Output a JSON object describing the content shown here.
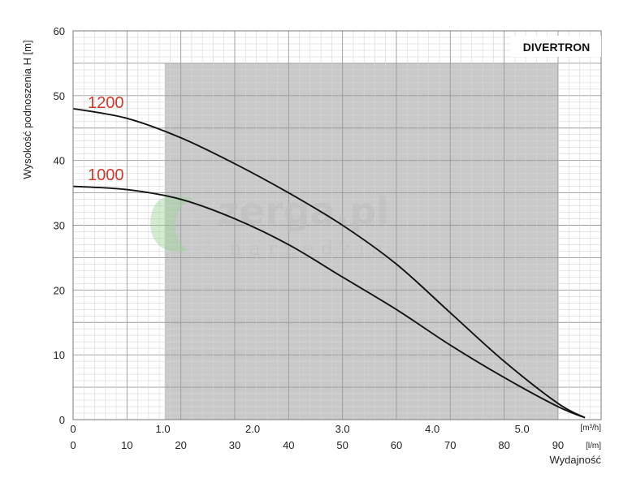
{
  "chart_data": {
    "type": "line",
    "title": "DIVERTRON",
    "ylabel": "Wysokość podnoszenia H [m]",
    "xlabel": "Wydajność",
    "ylim": [
      0,
      60
    ],
    "y_ticks": [
      "0",
      "10",
      "20",
      "30",
      "40",
      "50",
      "60"
    ],
    "x_axis_m3h": {
      "unit": "[m³/h]",
      "ticks": [
        "0",
        "1.0",
        "2.0",
        "3.0",
        "4.0",
        "5.0"
      ],
      "xlim": [
        0,
        5.88
      ]
    },
    "x_axis_lmin": {
      "unit": "[l/m]",
      "ticks": [
        "0",
        "10",
        "20",
        "30",
        "40",
        "50",
        "60",
        "70",
        "80",
        "90"
      ],
      "xlim": [
        0,
        98
      ]
    },
    "operating_range_lmin": [
      17,
      90
    ],
    "grid": true,
    "series": [
      {
        "name": "1200",
        "color": "#d03a2c",
        "x": [
          0,
          10,
          20,
          30,
          40,
          50,
          60,
          70,
          80,
          90,
          95
        ],
        "y": [
          48,
          46.5,
          43.5,
          39.5,
          35,
          30,
          24,
          16.5,
          9,
          2.5,
          0.3
        ]
      },
      {
        "name": "1000",
        "color": "#d03a2c",
        "x": [
          0,
          10,
          20,
          30,
          40,
          50,
          60,
          70,
          80,
          90,
          95
        ],
        "y": [
          36,
          35.5,
          34,
          31,
          27,
          22,
          17,
          11.5,
          6.5,
          2,
          0.3
        ]
      }
    ],
    "watermark": {
      "main": "zerga.pl",
      "sub": "narzędzia"
    }
  }
}
